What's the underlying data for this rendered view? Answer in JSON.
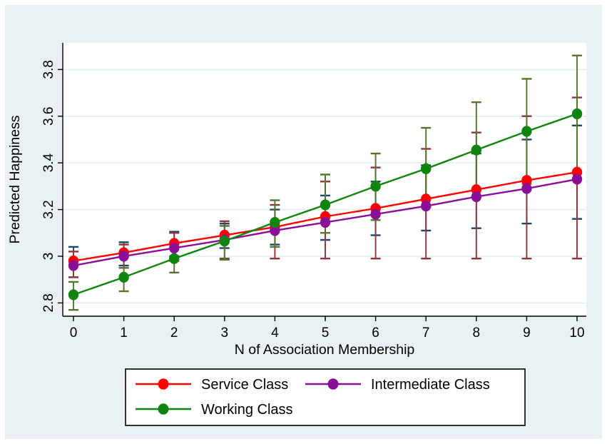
{
  "figure": {
    "background_color": "#e9f1f2",
    "plot_background": "#ffffff",
    "grid_color": "#dfecef",
    "axis_color": "#000000",
    "text_color": "#000000",
    "legend_border_color": "#000000",
    "legend_background": "#ffffff"
  },
  "chart_data": {
    "type": "line",
    "title": "",
    "xlabel": "N of Association Membership",
    "ylabel": "Predicted Happiness",
    "x": [
      0,
      1,
      2,
      3,
      4,
      5,
      6,
      7,
      8,
      9,
      10
    ],
    "xtick_labels": [
      "0",
      "1",
      "2",
      "3",
      "4",
      "5",
      "6",
      "7",
      "8",
      "9",
      "10"
    ],
    "ytick_values": [
      2.8,
      3.0,
      3.2,
      3.4,
      3.6,
      3.8
    ],
    "ytick_labels": [
      "2.8",
      "3",
      "3.2",
      "3.4",
      "3.6",
      "3.8"
    ],
    "ylim": [
      2.74,
      3.91
    ],
    "xlim": [
      -0.21,
      10.18
    ],
    "grid": "horizontal",
    "error_bars": true,
    "legend": {
      "position": "bottom",
      "columns": 2,
      "border": true,
      "entries": [
        "Service Class",
        "Intermediate Class",
        "Working Class"
      ]
    },
    "series": [
      {
        "name": "Service Class",
        "line_color": "#fe0000",
        "marker": "circle",
        "ci_cap_color": "#1a476f",
        "values": [
          2.98,
          3.015,
          3.055,
          3.09,
          3.125,
          3.17,
          3.205,
          3.245,
          3.285,
          3.325,
          3.36
        ],
        "ci_low": [
          2.91,
          2.96,
          3.0,
          3.035,
          3.05,
          3.07,
          3.09,
          3.11,
          3.12,
          3.14,
          3.16
        ],
        "ci_high": [
          3.04,
          3.06,
          3.105,
          3.14,
          3.2,
          3.26,
          3.32,
          3.39,
          3.44,
          3.5,
          3.56
        ]
      },
      {
        "name": "Intermediate Class",
        "line_color": "#8b0e97",
        "marker": "circle",
        "ci_cap_color": "#90353b",
        "values": [
          2.96,
          3.0,
          3.035,
          3.07,
          3.11,
          3.145,
          3.18,
          3.215,
          3.255,
          3.29,
          3.33
        ],
        "ci_low": [
          2.91,
          2.95,
          2.98,
          2.99,
          2.99,
          2.99,
          2.99,
          2.99,
          2.99,
          2.99,
          2.99
        ],
        "ci_high": [
          3.02,
          3.05,
          3.1,
          3.15,
          3.22,
          3.32,
          3.38,
          3.46,
          3.53,
          3.6,
          3.68
        ]
      },
      {
        "name": "Working Class",
        "line_color": "#0f850f",
        "marker": "circle",
        "ci_cap_color": "#55752f",
        "values": [
          2.835,
          2.91,
          2.99,
          3.065,
          3.145,
          3.22,
          3.3,
          3.375,
          3.455,
          3.535,
          3.61
        ],
        "ci_low": [
          2.77,
          2.85,
          2.93,
          2.985,
          3.04,
          3.1,
          3.155,
          3.21,
          3.26,
          3.31,
          3.36
        ],
        "ci_high": [
          2.89,
          2.95,
          3.05,
          3.13,
          3.24,
          3.35,
          3.44,
          3.55,
          3.66,
          3.76,
          3.86
        ]
      }
    ]
  }
}
